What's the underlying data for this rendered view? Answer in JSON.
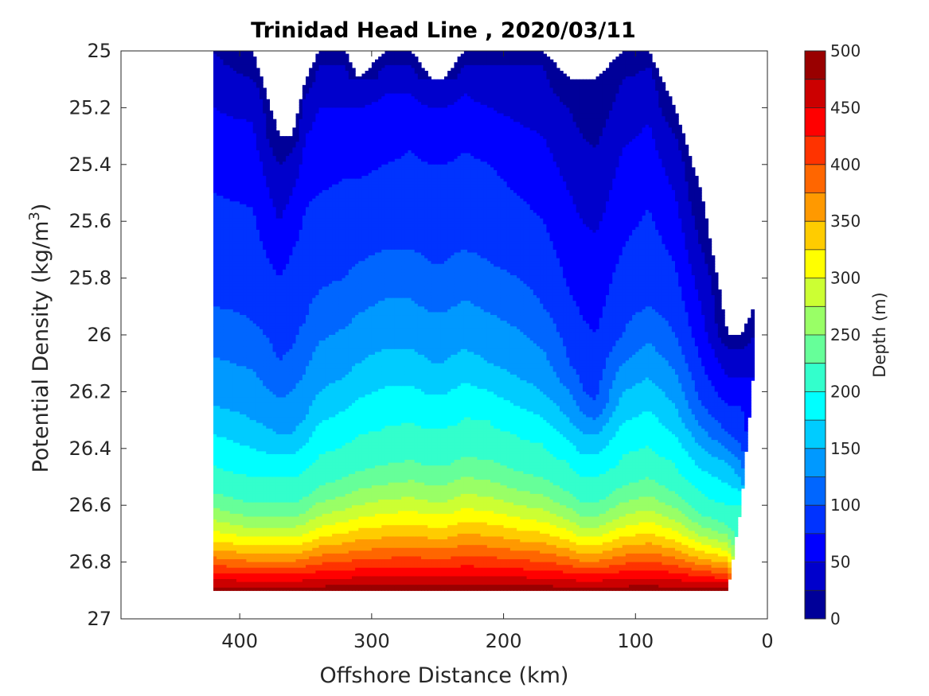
{
  "chart_data": {
    "type": "contour",
    "title": "Trinidad Head Line , 2020/03/11",
    "xlabel": "Offshore Distance (km)",
    "ylabel_main": "Potential Density (kg/m",
    "ylabel_sup": "3",
    "ylabel_close": ")",
    "xlim": [
      490,
      0
    ],
    "ylim": [
      25.0,
      27.0
    ],
    "y_reversed": true,
    "xticks": [
      400,
      300,
      200,
      100,
      0
    ],
    "xtick_labels": [
      "400",
      "300",
      "200",
      "100",
      "0"
    ],
    "yticks": [
      25.0,
      25.2,
      25.4,
      25.6,
      25.8,
      26.0,
      26.2,
      26.4,
      26.6,
      26.8,
      27.0
    ],
    "ytick_labels": [
      "25",
      "25.2",
      "25.4",
      "25.6",
      "25.8",
      "26",
      "26.2",
      "26.4",
      "26.6",
      "26.8",
      "27"
    ],
    "colorbar": {
      "label": "Depth (m)",
      "range": [
        0,
        500
      ],
      "ticks": [
        0,
        50,
        100,
        150,
        200,
        250,
        300,
        350,
        400,
        450,
        500
      ],
      "tick_labels": [
        "0",
        "50",
        "100",
        "150",
        "200",
        "250",
        "300",
        "350",
        "400",
        "450",
        "500"
      ],
      "level_step": 25,
      "colormap": "jet"
    },
    "stations_km": [
      420,
      390,
      370,
      360,
      350,
      340,
      320,
      310,
      290,
      270,
      255,
      245,
      230,
      210,
      190,
      170,
      150,
      140,
      130,
      110,
      90,
      70,
      50,
      30,
      20,
      10
    ],
    "density_range_by_station": {
      "top": [
        25.0,
        25.0,
        25.3,
        25.3,
        25.1,
        25.0,
        25.0,
        25.1,
        25.0,
        25.0,
        25.1,
        25.1,
        25.0,
        25.0,
        25.0,
        25.0,
        25.1,
        25.1,
        25.1,
        25.0,
        25.0,
        25.2,
        25.5,
        26.0,
        26.0,
        25.9
      ],
      "bottom": [
        26.9,
        26.9,
        26.9,
        26.9,
        26.9,
        26.9,
        26.9,
        26.9,
        26.9,
        26.9,
        26.9,
        26.9,
        26.9,
        26.9,
        26.9,
        26.9,
        26.9,
        26.9,
        26.9,
        26.9,
        26.9,
        26.9,
        26.9,
        26.9,
        26.6,
        26.1
      ]
    },
    "depth_isolines_density": {
      "0": [
        25.0,
        25.0,
        25.3,
        25.3,
        25.1,
        25.0,
        25.0,
        25.1,
        25.0,
        25.0,
        25.1,
        25.1,
        25.0,
        25.0,
        25.0,
        25.0,
        25.1,
        25.1,
        25.1,
        25.0,
        25.0,
        25.2,
        25.5,
        26.0,
        26.0,
        25.9
      ],
      "25": [
        25.0,
        25.1,
        25.4,
        25.35,
        25.15,
        25.05,
        25.05,
        25.1,
        25.05,
        25.05,
        25.1,
        25.1,
        25.05,
        25.05,
        25.05,
        25.05,
        25.2,
        25.3,
        25.35,
        25.1,
        25.05,
        25.3,
        25.7,
        26.05,
        26.05,
        26.0
      ],
      "50": [
        25.2,
        25.25,
        25.6,
        25.5,
        25.3,
        25.2,
        25.2,
        25.2,
        25.15,
        25.15,
        25.2,
        25.2,
        25.15,
        25.2,
        25.25,
        25.3,
        25.5,
        25.6,
        25.65,
        25.35,
        25.25,
        25.5,
        25.9,
        26.15,
        26.15,
        26.1
      ],
      "75": [
        25.5,
        25.55,
        25.8,
        25.7,
        25.55,
        25.5,
        25.45,
        25.45,
        25.4,
        25.35,
        25.4,
        25.4,
        25.35,
        25.4,
        25.5,
        25.6,
        25.85,
        25.95,
        26.0,
        25.7,
        25.55,
        25.75,
        26.1,
        26.25,
        26.25,
        26.2
      ],
      "100": [
        25.9,
        25.95,
        26.1,
        26.05,
        25.95,
        25.85,
        25.8,
        25.75,
        25.7,
        25.7,
        25.75,
        25.75,
        25.7,
        25.75,
        25.8,
        25.9,
        26.1,
        26.2,
        26.25,
        26.0,
        25.9,
        26.0,
        26.25,
        26.35,
        26.4,
        26.3
      ],
      "150": [
        26.25,
        26.3,
        26.35,
        26.35,
        26.3,
        26.2,
        26.15,
        26.1,
        26.05,
        26.05,
        26.1,
        26.1,
        26.05,
        26.1,
        26.15,
        26.2,
        26.3,
        26.35,
        26.35,
        26.2,
        26.15,
        26.25,
        26.4,
        26.45,
        26.5,
        26.4
      ],
      "200": [
        26.45,
        26.5,
        26.5,
        26.5,
        26.47,
        26.42,
        26.38,
        26.35,
        26.32,
        26.3,
        26.33,
        26.33,
        26.28,
        26.3,
        26.35,
        26.38,
        26.45,
        26.5,
        26.5,
        26.42,
        26.38,
        26.45,
        26.55,
        26.6,
        26.6,
        26.5
      ]
    }
  }
}
